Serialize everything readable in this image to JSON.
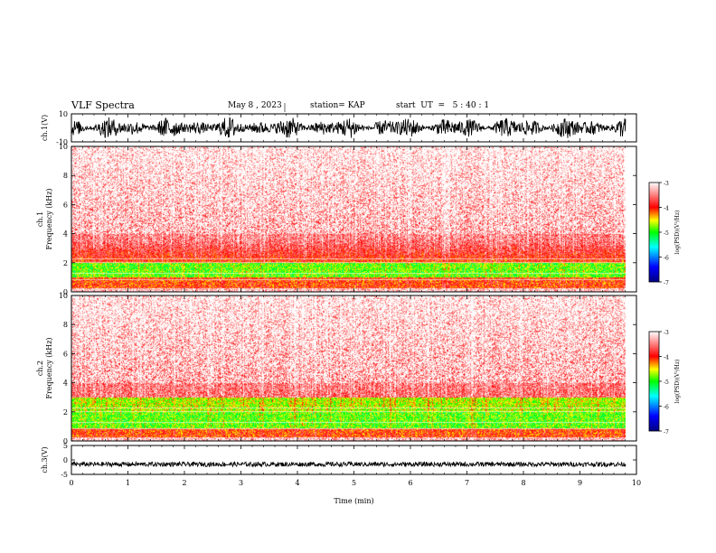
{
  "header": {
    "title": "VLF Spectra",
    "date": "May 8 , 2023",
    "station": "station= KAP",
    "start": "start  UT  =   5 : 40 : 1"
  },
  "chart_data": [
    {
      "type": "line",
      "id": "ch1-waveform",
      "ylabel": "ch.1(V)",
      "ylim": [
        -10,
        10
      ],
      "yticks": [
        "10",
        "-10"
      ],
      "xlim": [
        0,
        10
      ],
      "description_of_values": "dense oscillating waveform roughly spanning -8 to 8 V over 0-9.8 min"
    },
    {
      "type": "heatmap",
      "id": "ch1-spectrogram",
      "ylabel": "ch.1\nFrequency (kHz)",
      "ylabel_lines": [
        "ch.1",
        "Frequency (kHz)"
      ],
      "ylim": [
        0,
        10
      ],
      "yticks": [
        "0",
        "2",
        "4",
        "6",
        "8",
        "10"
      ],
      "xlim": [
        0,
        9.8
      ],
      "colorbar": {
        "label": "log(PSD)(V²/Hz)",
        "range": [
          -7,
          -3
        ],
        "ticks": [
          "-3",
          "-4",
          "-5",
          "-6",
          "-7"
        ],
        "colors": [
          "#000080",
          "#0000ff",
          "#00ffff",
          "#00ff00",
          "#ffff00",
          "#ff0000",
          "#ffffff"
        ]
      },
      "bands": [
        {
          "f_low": 0,
          "f_high": 0.3,
          "level": "white/red"
        },
        {
          "f_low": 0.3,
          "f_high": 1.0,
          "level": "-4"
        },
        {
          "f_low": 1.0,
          "f_high": 2.0,
          "level": "-5"
        },
        {
          "f_low": 2.0,
          "f_high": 3.5,
          "level": "-4"
        },
        {
          "f_low": 3.5,
          "f_high": 10,
          "level": "-3.2"
        }
      ]
    },
    {
      "type": "heatmap",
      "id": "ch2-spectrogram",
      "ylabel": "ch.2\nFrequency (kHz)",
      "ylabel_lines": [
        "ch.2",
        "Frequency (kHz)"
      ],
      "ylim": [
        0,
        10
      ],
      "yticks": [
        "0",
        "2",
        "4",
        "6",
        "8",
        "10"
      ],
      "xlim": [
        0,
        9.8
      ],
      "colorbar": {
        "label": "log(PSD)(V²/Hz)",
        "range": [
          -7,
          -3
        ],
        "ticks": [
          "-3",
          "-4",
          "-5",
          "-6",
          "-7"
        ]
      },
      "bands": [
        {
          "f_low": 0,
          "f_high": 0.3,
          "level": "white/red"
        },
        {
          "f_low": 0.3,
          "f_high": 2.0,
          "level": "-5"
        },
        {
          "f_low": 2.0,
          "f_high": 3.0,
          "level": "-5"
        },
        {
          "f_low": 3.0,
          "f_high": 10,
          "level": "-3.2"
        }
      ]
    },
    {
      "type": "line",
      "id": "ch3-waveform",
      "ylabel": "ch.3(V)",
      "ylim": [
        -5,
        5
      ],
      "yticks": [
        "5",
        "0",
        "-5"
      ],
      "xlim": [
        0,
        10
      ],
      "description_of_values": "nearly flat thick trace near -1.5 V"
    }
  ],
  "xaxis": {
    "label": "Time (min)",
    "ticks": [
      "0",
      "1",
      "2",
      "3",
      "4",
      "5",
      "6",
      "7",
      "8",
      "9",
      "10"
    ],
    "range": [
      0,
      10
    ]
  }
}
